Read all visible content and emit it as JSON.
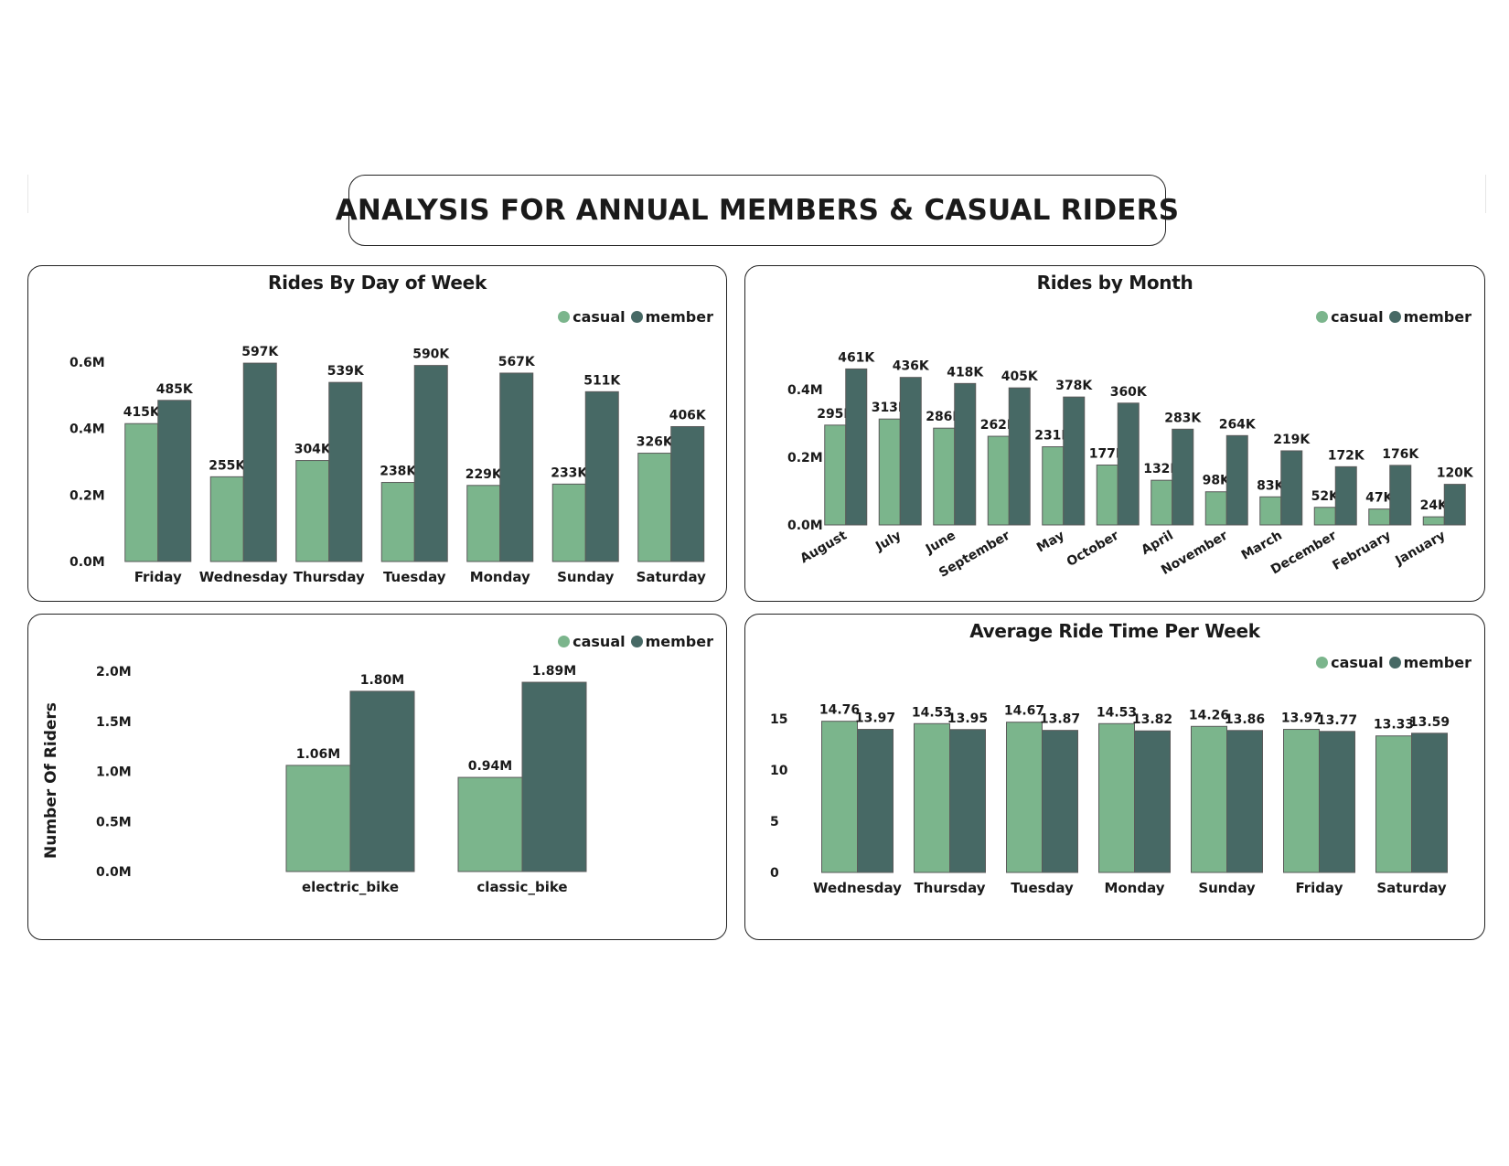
{
  "dashboard": {
    "title": "ANALYSIS FOR ANNUAL MEMBERS & CASUAL RIDERS"
  },
  "legend": {
    "casual": "casual",
    "member": "member"
  },
  "colors": {
    "casual": "#7bb58c",
    "member": "#476965",
    "bar_outline": "#5a5a5a"
  },
  "chart_data": [
    {
      "id": "day",
      "type": "bar",
      "title": "Rides By Day of Week",
      "legend_position": "top-right",
      "categories": [
        "Friday",
        "Wednesday",
        "Thursday",
        "Tuesday",
        "Monday",
        "Sunday",
        "Saturday"
      ],
      "series": [
        {
          "name": "casual",
          "values": [
            415000,
            255000,
            304000,
            238000,
            229000,
            233000,
            326000
          ],
          "labels": [
            "415K",
            "255K",
            "304K",
            "238K",
            "229K",
            "233K",
            "326K"
          ]
        },
        {
          "name": "member",
          "values": [
            485000,
            597000,
            539000,
            590000,
            567000,
            511000,
            406000
          ],
          "labels": [
            "485K",
            "597K",
            "539K",
            "590K",
            "567K",
            "511K",
            "406K"
          ]
        }
      ],
      "yticks": [
        0,
        200000,
        400000,
        600000
      ],
      "ytick_labels": [
        "0.0M",
        "0.2M",
        "0.4M",
        "0.6M"
      ],
      "ylim": [
        0,
        600000
      ],
      "xlabel": "",
      "ylabel": "",
      "grid": false
    },
    {
      "id": "month",
      "type": "bar",
      "title": "Rides by Month",
      "legend_position": "top-right",
      "categories": [
        "August",
        "July",
        "June",
        "September",
        "May",
        "October",
        "April",
        "November",
        "March",
        "December",
        "February",
        "January"
      ],
      "series": [
        {
          "name": "casual",
          "values": [
            295000,
            313000,
            286000,
            262000,
            231000,
            177000,
            132000,
            98000,
            83000,
            52000,
            47000,
            24000
          ],
          "labels": [
            "295K",
            "313K",
            "286K",
            "262K",
            "231K",
            "177K",
            "132K",
            "98K",
            "83K",
            "52K",
            "47K",
            "24K"
          ]
        },
        {
          "name": "member",
          "values": [
            461000,
            436000,
            418000,
            405000,
            378000,
            360000,
            283000,
            264000,
            219000,
            172000,
            176000,
            120000
          ],
          "labels": [
            "461K",
            "436K",
            "418K",
            "405K",
            "378K",
            "360K",
            "283K",
            "264K",
            "219K",
            "172K",
            "176K",
            "120K"
          ]
        }
      ],
      "yticks": [
        0,
        200000,
        400000
      ],
      "ytick_labels": [
        "0.0M",
        "0.2M",
        "0.4M"
      ],
      "ylim": [
        0,
        400000
      ],
      "xlabel": "",
      "ylabel": "",
      "grid": false
    },
    {
      "id": "bike",
      "type": "bar",
      "title": "",
      "legend_position": "top-right",
      "categories": [
        "electric_bike",
        "classic_bike"
      ],
      "series": [
        {
          "name": "casual",
          "values": [
            1060000,
            940000
          ],
          "labels": [
            "1.06M",
            "0.94M"
          ]
        },
        {
          "name": "member",
          "values": [
            1800000,
            1890000
          ],
          "labels": [
            "1.80M",
            "1.89M"
          ]
        }
      ],
      "yticks": [
        0,
        500000,
        1000000,
        1500000,
        2000000
      ],
      "ytick_labels": [
        "0.0M",
        "0.5M",
        "1.0M",
        "1.5M",
        "2.0M"
      ],
      "ylim": [
        0,
        2000000
      ],
      "xlabel": "",
      "ylabel": "Number Of Riders",
      "grid": false
    },
    {
      "id": "avg",
      "type": "bar",
      "title": "Average Ride Time Per Week",
      "legend_position": "top-right",
      "categories": [
        "Wednesday",
        "Thursday",
        "Tuesday",
        "Monday",
        "Sunday",
        "Friday",
        "Saturday"
      ],
      "series": [
        {
          "name": "casual",
          "values": [
            14.76,
            14.53,
            14.67,
            14.53,
            14.26,
            13.97,
            13.33
          ],
          "labels": [
            "14.76",
            "14.53",
            "14.67",
            "14.53",
            "14.26",
            "13.97",
            "13.33"
          ]
        },
        {
          "name": "member",
          "values": [
            13.97,
            13.95,
            13.87,
            13.82,
            13.86,
            13.77,
            13.59
          ],
          "labels": [
            "13.97",
            "13.95",
            "13.87",
            "13.82",
            "13.86",
            "13.77",
            "13.59"
          ]
        }
      ],
      "yticks": [
        0,
        5,
        10,
        15
      ],
      "ytick_labels": [
        "0",
        "5",
        "10",
        "15"
      ],
      "ylim": [
        0,
        15
      ],
      "xlabel": "",
      "ylabel": "",
      "grid": false
    }
  ]
}
